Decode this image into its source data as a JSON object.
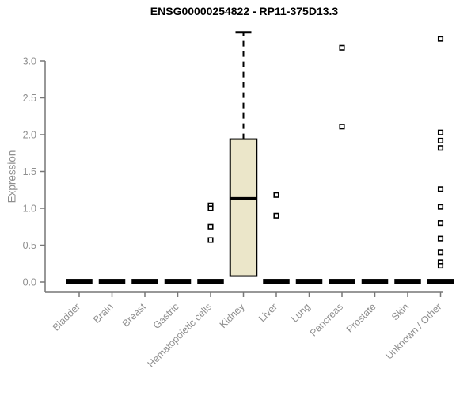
{
  "chart_data": {
    "type": "boxplot",
    "title": "ENSG00000254822 - RP11-375D13.3",
    "xlabel": "",
    "ylabel": "Expression",
    "yticks": [
      "0.0",
      "0.5",
      "1.0",
      "1.5",
      "2.0",
      "2.5",
      "3.0"
    ],
    "ylim": [
      -0.14,
      3.45
    ],
    "grid": false,
    "legend": "none",
    "categories": [
      "Bladder",
      "Brain",
      "Breast",
      "Gastric",
      "Hematopoietic cells",
      "Kidney",
      "Liver",
      "Lung",
      "Pancreas",
      "Prostate",
      "Skin",
      "Unknown / Other"
    ],
    "series": [
      {
        "name": "Bladder",
        "whisker_low": 0,
        "q1": 0,
        "median": 0.01,
        "q3": 0.02,
        "whisker_high": 0.02,
        "outliers": []
      },
      {
        "name": "Brain",
        "whisker_low": 0,
        "q1": 0,
        "median": 0.01,
        "q3": 0.02,
        "whisker_high": 0.02,
        "outliers": []
      },
      {
        "name": "Breast",
        "whisker_low": 0,
        "q1": 0,
        "median": 0.01,
        "q3": 0.02,
        "whisker_high": 0.02,
        "outliers": []
      },
      {
        "name": "Gastric",
        "whisker_low": 0,
        "q1": 0,
        "median": 0.01,
        "q3": 0.02,
        "whisker_high": 0.02,
        "outliers": []
      },
      {
        "name": "Hematopoietic cells",
        "whisker_low": 0,
        "q1": 0,
        "median": 0.01,
        "q3": 0.02,
        "whisker_high": 0.02,
        "outliers": [
          1.04,
          1.0,
          0.75,
          0.57
        ]
      },
      {
        "name": "Kidney",
        "whisker_low": 0.08,
        "q1": 0.08,
        "median": 1.13,
        "q3": 1.94,
        "whisker_high": 3.39,
        "outliers": []
      },
      {
        "name": "Liver",
        "whisker_low": 0,
        "q1": 0,
        "median": 0.01,
        "q3": 0.02,
        "whisker_high": 0.02,
        "outliers": [
          1.18,
          0.9
        ]
      },
      {
        "name": "Lung",
        "whisker_low": 0,
        "q1": 0,
        "median": 0.01,
        "q3": 0.02,
        "whisker_high": 0.02,
        "outliers": []
      },
      {
        "name": "Pancreas",
        "whisker_low": 0,
        "q1": 0,
        "median": 0.01,
        "q3": 0.02,
        "whisker_high": 0.02,
        "outliers": [
          3.18,
          2.11
        ]
      },
      {
        "name": "Prostate",
        "whisker_low": 0,
        "q1": 0,
        "median": 0.01,
        "q3": 0.02,
        "whisker_high": 0.02,
        "outliers": []
      },
      {
        "name": "Skin",
        "whisker_low": 0,
        "q1": 0,
        "median": 0.01,
        "q3": 0.02,
        "whisker_high": 0.02,
        "outliers": []
      },
      {
        "name": "Unknown / Other",
        "whisker_low": 0,
        "q1": 0,
        "median": 0.01,
        "q3": 0.02,
        "whisker_high": 0.02,
        "outliers": [
          3.3,
          2.03,
          1.92,
          1.82,
          1.26,
          1.02,
          0.8,
          0.59,
          0.4,
          0.27,
          0.22
        ]
      }
    ],
    "colors": {
      "box_fill": "#EBE6C9",
      "box_stroke": "#000000",
      "axis": "#777777",
      "tick_label": "#8f8f8f",
      "title": "#000000"
    }
  }
}
